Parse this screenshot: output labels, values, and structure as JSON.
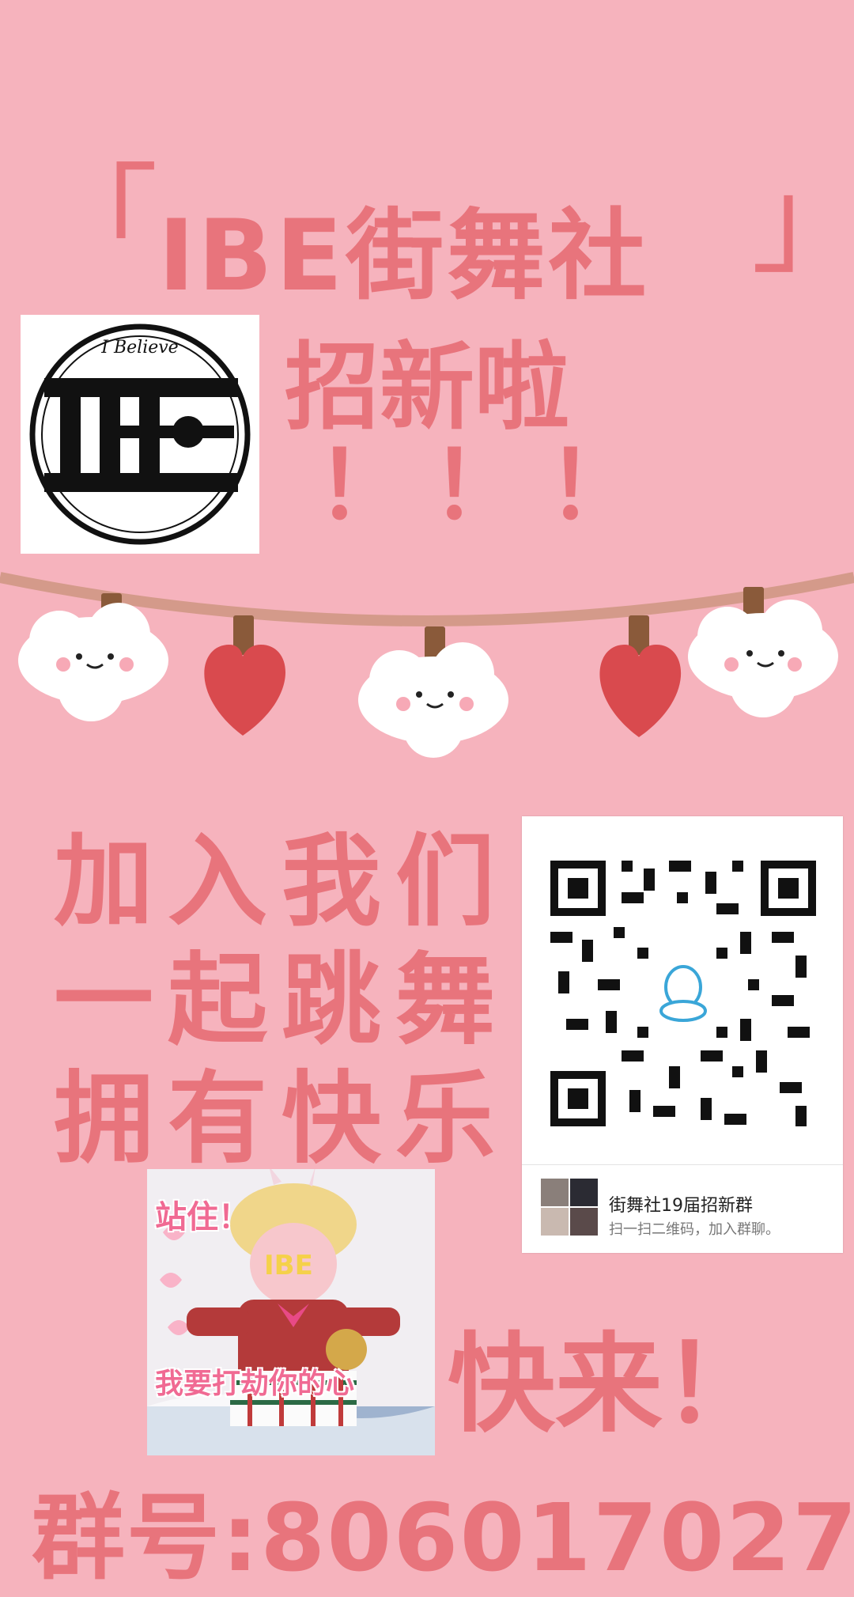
{
  "poster": {
    "title": "IBE街舞社",
    "bracket_open": "「",
    "bracket_close": "」",
    "subtitle": "招新啦",
    "exclaims": [
      "！",
      "！",
      "！"
    ],
    "slogans": [
      "加入我们",
      "一起跳舞",
      "拥有快乐"
    ],
    "come": "快来！",
    "group_number": "群号:806017027"
  },
  "logo": {
    "script_text": "I Believe"
  },
  "qr": {
    "group_name": "街舞社19届招新群",
    "hint": "扫一扫二维码，加入群聊。"
  },
  "sticker": {
    "top_text": "站住！",
    "face_text": "IBE",
    "bottom_text": "我要打劫你的心"
  },
  "colors": {
    "background": "#f6b3bd",
    "accent": "#e8747c",
    "heart": "#d94a4e"
  }
}
